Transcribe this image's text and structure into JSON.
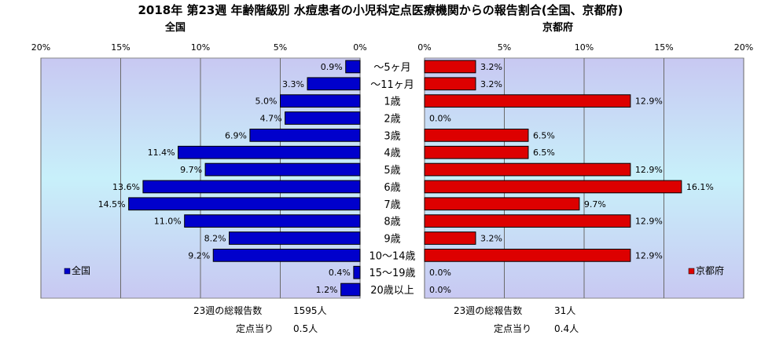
{
  "title": "2018年 第23週 年齢階級別 水痘患者の小児科定点医療機関からの報告割合(全国、京都府)",
  "colors": {
    "national": "#0000cc",
    "kyoto": "#dd0000",
    "bar_border": "#000000"
  },
  "chart_data": {
    "type": "bar",
    "orientation": "horizontal",
    "categories": [
      "～5ヶ月",
      "～11ヶ月",
      "1歳",
      "2歳",
      "3歳",
      "4歳",
      "5歳",
      "6歳",
      "7歳",
      "8歳",
      "9歳",
      "10～14歳",
      "15～19歳",
      "20歳以上"
    ],
    "x_ticks": [
      "20%",
      "15%",
      "10%",
      "5%",
      "0%"
    ],
    "x_ticks_right": [
      "0%",
      "5%",
      "10%",
      "15%",
      "20%"
    ],
    "xlim": [
      0,
      20
    ],
    "series": [
      {
        "name": "全国",
        "title": "全国",
        "side": "left",
        "values": [
          0.9,
          3.3,
          5.0,
          4.7,
          6.9,
          11.4,
          9.7,
          13.6,
          14.5,
          11.0,
          8.2,
          9.2,
          0.4,
          1.2
        ],
        "labels": [
          "0.9%",
          "3.3%",
          "5.0%",
          "4.7%",
          "6.9%",
          "11.4%",
          "9.7%",
          "13.6%",
          "14.5%",
          "11.0%",
          "8.2%",
          "9.2%",
          "0.4%",
          "1.2%"
        ]
      },
      {
        "name": "京都府",
        "title": "京都府",
        "side": "right",
        "values": [
          3.2,
          3.2,
          12.9,
          0.0,
          6.5,
          6.5,
          12.9,
          16.1,
          9.7,
          12.9,
          3.2,
          12.9,
          0.0,
          0.0
        ],
        "labels": [
          "3.2%",
          "3.2%",
          "12.9%",
          "0.0%",
          "6.5%",
          "6.5%",
          "12.9%",
          "16.1%",
          "9.7%",
          "12.9%",
          "3.2%",
          "12.9%",
          "0.0%",
          "0.0%"
        ]
      }
    ],
    "grid": true,
    "legend_left": "bottom-left",
    "legend_right": "bottom-right"
  },
  "footer": {
    "national_total_label": "23週の総報告数",
    "national_total_value": "1595人",
    "national_per_label": "定点当り",
    "national_per_value": "0.5人",
    "kyoto_total_label": "23週の総報告数",
    "kyoto_total_value": "31人",
    "kyoto_per_label": "定点当り",
    "kyoto_per_value": "0.4人"
  }
}
